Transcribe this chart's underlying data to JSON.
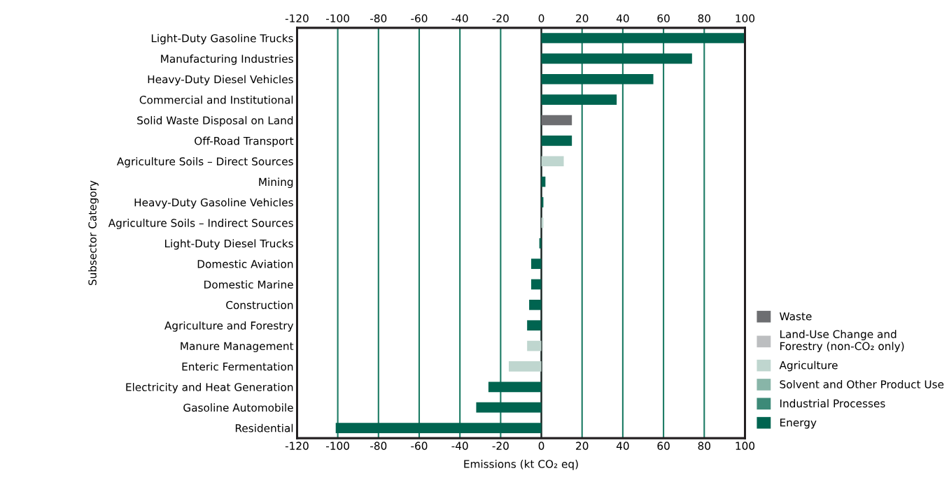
{
  "chart_data": {
    "type": "bar",
    "orientation": "horizontal",
    "xlabel": "Emissions (kt CO₂ eq)",
    "ylabel": "Subsector Category",
    "categories": [
      "Light-Duty Gasoline Trucks",
      "Manufacturing Industries",
      "Heavy-Duty Diesel Vehicles",
      "Commercial and Institutional",
      "Solid Waste Disposal on Land",
      "Off-Road Transport",
      "Agriculture Soils – Direct Sources",
      "Mining",
      "Heavy-Duty Gasoline Vehicles",
      "Agriculture Soils – Indirect Sources",
      "Light-Duty Diesel Trucks",
      "Domestic Aviation",
      "Domestic Marine",
      "Construction",
      "Agriculture and Forestry",
      "Manure Management",
      "Enteric Fermentation",
      "Electricity and Heat Generation",
      "Gasoline Automobile",
      "Residential"
    ],
    "series": [
      {
        "name": "Waste",
        "color": "#6d6e71",
        "values": [
          null,
          null,
          null,
          null,
          15,
          null,
          null,
          null,
          null,
          null,
          null,
          null,
          null,
          null,
          null,
          null,
          null,
          null,
          null,
          null
        ]
      },
      {
        "name": "Land-Use Change and\nForestry (non-CO₂ only)",
        "color": "#bcbec0",
        "values": [
          null,
          null,
          null,
          null,
          null,
          null,
          null,
          null,
          null,
          null,
          null,
          null,
          null,
          null,
          null,
          null,
          null,
          null,
          null,
          null
        ]
      },
      {
        "name": "Agriculture",
        "color": "#bfd6cf",
        "values": [
          null,
          null,
          null,
          null,
          null,
          null,
          11,
          null,
          null,
          1,
          null,
          null,
          null,
          null,
          null,
          -7,
          -16,
          null,
          null,
          null
        ]
      },
      {
        "name": "Solvent and Other Product Use",
        "color": "#88b5a8",
        "values": [
          null,
          null,
          null,
          null,
          null,
          null,
          null,
          null,
          null,
          null,
          null,
          null,
          null,
          null,
          null,
          null,
          null,
          null,
          null,
          null
        ]
      },
      {
        "name": "Industrial Processes",
        "color": "#3d8a78",
        "values": [
          null,
          null,
          null,
          null,
          null,
          null,
          null,
          null,
          null,
          null,
          null,
          null,
          null,
          null,
          null,
          null,
          null,
          null,
          null,
          null
        ]
      },
      {
        "name": "Energy",
        "color": "#006450",
        "values": [
          100,
          74,
          55,
          37,
          null,
          15,
          null,
          2,
          1,
          null,
          -1,
          -5,
          -5,
          -6,
          -7,
          null,
          null,
          -26,
          -32,
          -101
        ]
      }
    ],
    "xlim": [
      -120,
      100
    ],
    "xticks": [
      -120,
      -100,
      -80,
      -60,
      -40,
      -20,
      0,
      20,
      40,
      60,
      80,
      100
    ],
    "x2lim": [
      -120,
      100
    ],
    "x2ticks": [
      -120,
      -100,
      -80,
      -60,
      -40,
      -20,
      0,
      20,
      40,
      60,
      80,
      100
    ],
    "ref_lines": [
      {
        "axis": "x",
        "value": 0,
        "color": "#231f20"
      }
    ],
    "grid": "x",
    "legend": "bottom right"
  }
}
